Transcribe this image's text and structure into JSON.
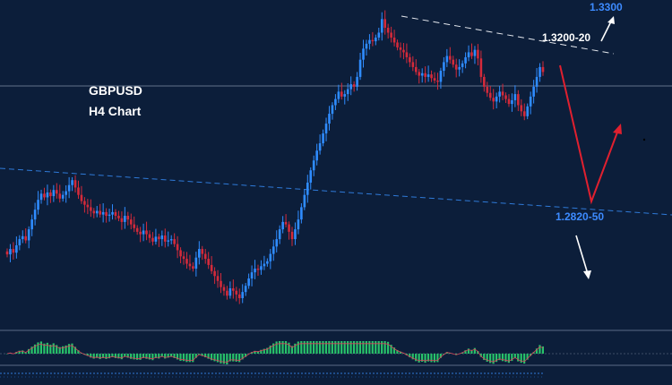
{
  "chart_data": {
    "type": "candlestick",
    "title_line1": "GBPUSD",
    "title_line2": "H4 Chart",
    "levels": {
      "resistance_label": "1.3200-20",
      "target_up_label": "1.3300",
      "support_label": "1.2820-50"
    },
    "closes": [
      1.2738,
      1.276,
      1.2745,
      1.2775,
      1.28,
      1.2812,
      1.2795,
      1.284,
      1.288,
      1.292,
      1.296,
      1.2985,
      1.297,
      1.299,
      1.2975,
      1.3,
      1.2985,
      1.2965,
      1.298,
      1.2995,
      1.302,
      1.304,
      1.301,
      1.298,
      1.2955,
      1.294,
      1.293,
      1.2915,
      1.2905,
      1.2915,
      1.29,
      1.291,
      1.2895,
      1.29,
      1.291,
      1.2895,
      1.2885,
      1.287,
      1.2895,
      1.288,
      1.286,
      1.2845,
      1.283,
      1.282,
      1.2835,
      1.282,
      1.2805,
      1.279,
      1.281,
      1.28,
      1.2815,
      1.279,
      1.2795,
      1.28,
      1.278,
      1.2755,
      1.273,
      1.272,
      1.27,
      1.269,
      1.268,
      1.2725,
      1.276,
      1.274,
      1.272,
      1.2695,
      1.267,
      1.265,
      1.263,
      1.2605,
      1.259,
      1.257,
      1.26,
      1.259,
      1.2575,
      1.256,
      1.2585,
      1.261,
      1.264,
      1.2665,
      1.268,
      1.2675,
      1.269,
      1.27,
      1.271,
      1.274,
      1.277,
      1.28,
      1.284,
      1.287,
      1.286,
      1.283,
      1.28,
      1.284,
      1.288,
      1.293,
      1.298,
      1.303,
      1.308,
      1.312,
      1.316,
      1.319,
      1.323,
      1.327,
      1.331,
      1.3345,
      1.337,
      1.34,
      1.338,
      1.339,
      1.341,
      1.343,
      1.342,
      1.346,
      1.353,
      1.3575,
      1.3595,
      1.361,
      1.3605,
      1.362,
      1.364,
      1.3695,
      1.366,
      1.364,
      1.362,
      1.36,
      1.358,
      1.357,
      1.356,
      1.354,
      1.352,
      1.35,
      1.348,
      1.3465,
      1.3475,
      1.346,
      1.347,
      1.3455,
      1.3445,
      1.344,
      1.3485,
      1.352,
      1.3545,
      1.353,
      1.351,
      1.349,
      1.35,
      1.3515,
      1.354,
      1.356,
      1.3545,
      1.357,
      1.3535,
      1.346,
      1.342,
      1.3395,
      1.3375,
      1.336,
      1.338,
      1.34,
      1.3385,
      1.337,
      1.335,
      1.3365,
      1.339,
      1.3345,
      1.332,
      1.33,
      1.334,
      1.338,
      1.342,
      1.346,
      1.35,
      1.348
    ],
    "projection": {
      "down_to": 1.2835,
      "then_up_to": 1.3142
    }
  },
  "colors": {
    "background": "#0c1e3a",
    "bull": "#2f8cff",
    "bear": "#d42a3a",
    "projection": "#e0202f",
    "support_line": "#2f7ad8",
    "osc_pos": "#28c36a",
    "osc_neg": "#1f8a4a"
  }
}
